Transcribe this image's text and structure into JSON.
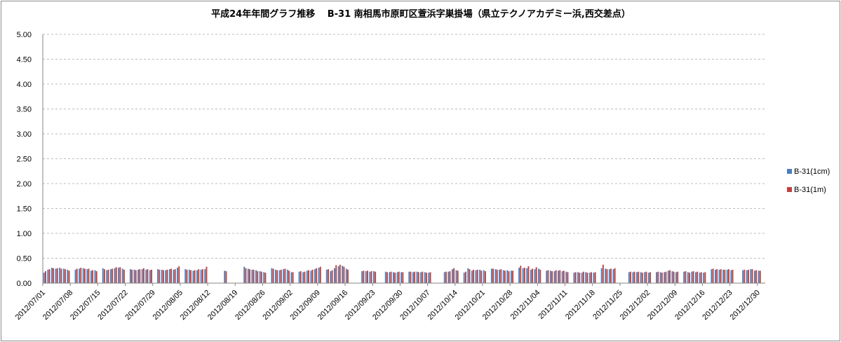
{
  "chart_data": {
    "type": "bar",
    "title": "平成24年年間グラフ推移　 B-31 南相馬市原町区萱浜字巣掛場（県立テクノアカデミー浜,西交差点）",
    "xlabel": "",
    "ylabel": "",
    "ylim": [
      0,
      5.0
    ],
    "yticks": [
      "0.00",
      "0.50",
      "1.00",
      "1.50",
      "2.00",
      "2.50",
      "3.00",
      "3.50",
      "4.00",
      "4.50",
      "5.00"
    ],
    "grid": "horizontal-dashed",
    "legend_position": "right",
    "x_start": "2012/07/01",
    "x_end": "2012/12/30",
    "xticks": [
      "2012/07/01",
      "2012/07/08",
      "2012/07/15",
      "2012/07/22",
      "2012/07/29",
      "2012/08/05",
      "2012/08/12",
      "2012/08/19",
      "2012/08/26",
      "2012/09/02",
      "2012/09/09",
      "2012/09/16",
      "2012/09/23",
      "2012/09/30",
      "2012/10/07",
      "2012/10/14",
      "2012/10/21",
      "2012/10/28",
      "2012/11/04",
      "2012/11/11",
      "2012/11/18",
      "2012/11/25",
      "2012/12/02",
      "2012/12/09",
      "2012/12/16",
      "2012/12/23",
      "2012/12/30"
    ],
    "series": [
      {
        "name": "B-31(1cm)",
        "color": "#4a7ebb",
        "values": [
          0.21,
          0.27,
          0.31,
          0.29,
          0.31,
          0.29,
          0.27,
          0,
          0.27,
          0.29,
          0.3,
          0.28,
          0.25,
          0.26,
          0,
          0.3,
          0.26,
          0.28,
          0.3,
          0.31,
          0.29,
          0,
          0.28,
          0.27,
          0.27,
          0.28,
          0.27,
          0.26,
          0,
          0.28,
          0.27,
          0.26,
          0.28,
          0.27,
          0.31,
          0,
          0.28,
          0.27,
          0.25,
          0.26,
          0.27,
          0.28,
          0,
          0,
          0,
          0,
          0.25,
          0,
          0,
          0,
          0,
          0.33,
          0.29,
          0.27,
          0.26,
          0.24,
          0.22,
          0,
          0.3,
          0.27,
          0.26,
          0.28,
          0.27,
          0.22,
          0,
          0.23,
          0.22,
          0.25,
          0.25,
          0.28,
          0.31,
          0,
          0.27,
          0.24,
          0.3,
          0.34,
          0.35,
          0.29,
          0,
          0,
          0,
          0.24,
          0.24,
          0.23,
          0.24,
          0,
          0,
          0.23,
          0.22,
          0.22,
          0.22,
          0.22,
          0,
          0.23,
          0.22,
          0.23,
          0.22,
          0.22,
          0.21,
          0,
          0,
          0,
          0.22,
          0.23,
          0.28,
          0.26,
          0,
          0.21,
          0.3,
          0.25,
          0.26,
          0.27,
          0.26,
          0,
          0.29,
          0.28,
          0.27,
          0.26,
          0.26,
          0.25,
          0,
          0.31,
          0.3,
          0.3,
          0.27,
          0.28,
          0.29,
          0,
          0.25,
          0.25,
          0.24,
          0.25,
          0.24,
          0.23,
          0,
          0.21,
          0.22,
          0.21,
          0.22,
          0.21,
          0.21,
          0,
          0.3,
          0.29,
          0.28,
          0.28,
          0,
          0,
          0,
          0.22,
          0.22,
          0.22,
          0.22,
          0.22,
          0.21,
          0,
          0.22,
          0.22,
          0.22,
          0.25,
          0.24,
          0.22,
          0,
          0.23,
          0.22,
          0.23,
          0.22,
          0.21,
          0.21,
          0,
          0.28,
          0.27,
          0.27,
          0.27,
          0.27,
          0.26,
          0,
          0,
          0.26,
          0.26,
          0.28,
          0.25,
          0.25,
          0
        ]
      },
      {
        "name": "B-31(1m)",
        "color": "#c0403c",
        "values": [
          0.24,
          0.28,
          0.3,
          0.3,
          0.29,
          0.28,
          0.25,
          0,
          0.29,
          0.31,
          0.29,
          0.29,
          0.26,
          0.24,
          0,
          0.28,
          0.27,
          0.29,
          0.32,
          0.32,
          0.27,
          0,
          0.27,
          0.26,
          0.28,
          0.3,
          0.28,
          0.27,
          0,
          0.27,
          0.26,
          0.27,
          0.29,
          0.28,
          0.34,
          0,
          0.27,
          0.26,
          0.26,
          0.28,
          0.28,
          0.33,
          0,
          0,
          0,
          0,
          0.24,
          0,
          0,
          0,
          0,
          0.3,
          0.28,
          0.27,
          0.24,
          0.23,
          0.21,
          0,
          0.29,
          0.26,
          0.27,
          0.29,
          0.25,
          0.22,
          0,
          0.24,
          0.23,
          0.26,
          0.27,
          0.3,
          0.33,
          0,
          0.28,
          0.26,
          0.36,
          0.37,
          0.33,
          0.27,
          0,
          0,
          0,
          0.25,
          0.25,
          0.24,
          0.23,
          0,
          0,
          0.22,
          0.23,
          0.21,
          0.23,
          0.22,
          0,
          0.23,
          0.23,
          0.22,
          0.23,
          0.21,
          0.22,
          0,
          0,
          0,
          0.23,
          0.24,
          0.3,
          0.25,
          0,
          0.23,
          0.28,
          0.27,
          0.27,
          0.25,
          0.24,
          0,
          0.29,
          0.27,
          0.28,
          0.25,
          0.24,
          0.25,
          0,
          0.35,
          0.31,
          0.34,
          0.29,
          0.32,
          0.27,
          0,
          0.26,
          0.24,
          0.26,
          0.26,
          0.25,
          0.22,
          0,
          0.22,
          0.21,
          0.23,
          0.21,
          0.22,
          0.22,
          0,
          0.37,
          0.28,
          0.29,
          0.3,
          0,
          0,
          0,
          0.23,
          0.23,
          0.23,
          0.21,
          0.23,
          0.22,
          0,
          0.23,
          0.21,
          0.23,
          0.26,
          0.23,
          0.23,
          0,
          0.24,
          0.21,
          0.24,
          0.23,
          0.22,
          0.22,
          0,
          0.29,
          0.28,
          0.28,
          0.27,
          0.28,
          0.27,
          0,
          0,
          0.27,
          0.27,
          0.28,
          0.26,
          0.25,
          0
        ]
      }
    ]
  }
}
